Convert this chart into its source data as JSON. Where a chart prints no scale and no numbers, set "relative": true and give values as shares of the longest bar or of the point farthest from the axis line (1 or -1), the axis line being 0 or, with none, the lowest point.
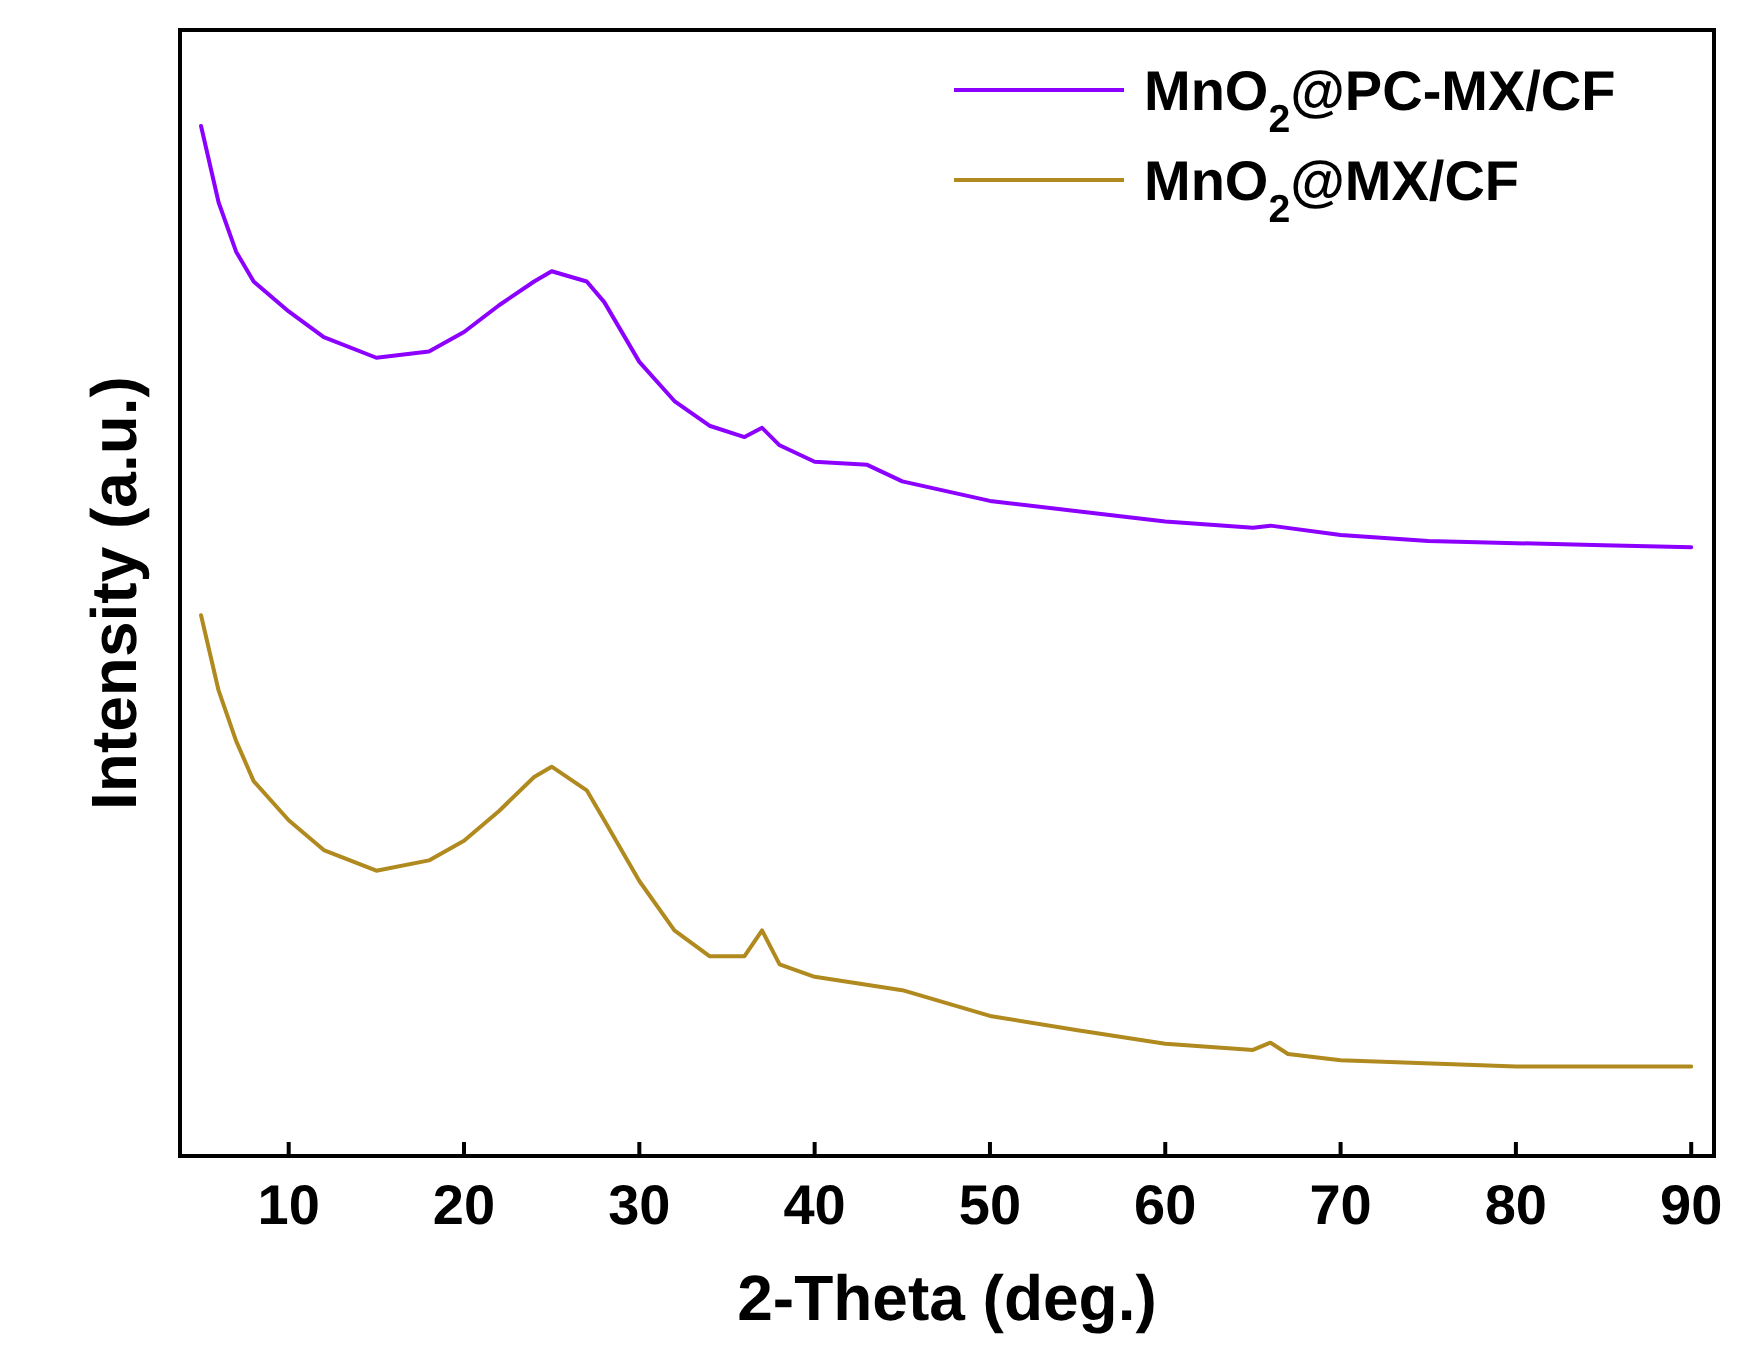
{
  "chart_data": {
    "type": "line",
    "relative": true,
    "xlabel": "2-Theta (deg.)",
    "ylabel": "Intensity (a.u.)",
    "xlim": [
      3.8,
      91.3
    ],
    "xticks": [
      10,
      20,
      30,
      40,
      50,
      60,
      70,
      80,
      90
    ],
    "legend": "top right",
    "marker": "none",
    "line_style": "solid",
    "grid": false,
    "series": [
      {
        "name": "MnO$_{2}$@PC-MX/CF",
        "color": "#8b00ff",
        "x": [
          5,
          6,
          7,
          8,
          10,
          12,
          15,
          18,
          20,
          22,
          24,
          25,
          27,
          28,
          30,
          32,
          34,
          36,
          37,
          38,
          40,
          43,
          45,
          50,
          55,
          60,
          65,
          66,
          70,
          75,
          80,
          85,
          90
        ],
        "values": [
          1.0,
          0.926,
          0.878,
          0.849,
          0.82,
          0.795,
          0.775,
          0.781,
          0.8,
          0.826,
          0.849,
          0.859,
          0.849,
          0.829,
          0.771,
          0.733,
          0.709,
          0.698,
          0.707,
          0.69,
          0.674,
          0.671,
          0.655,
          0.636,
          0.626,
          0.616,
          0.61,
          0.612,
          0.603,
          0.597,
          0.595,
          0.593,
          0.591
        ]
      },
      {
        "name": "MnO$_{2}$@MX/CF",
        "color": "#b08a1e",
        "x": [
          5,
          6,
          7,
          8,
          10,
          12,
          15,
          18,
          20,
          22,
          24,
          25,
          27,
          28,
          30,
          32,
          34,
          36,
          37,
          38,
          40,
          45,
          50,
          55,
          60,
          65,
          66,
          67,
          70,
          80,
          90
        ],
        "values": [
          0.525,
          0.452,
          0.403,
          0.364,
          0.326,
          0.297,
          0.277,
          0.287,
          0.306,
          0.335,
          0.368,
          0.378,
          0.355,
          0.326,
          0.267,
          0.219,
          0.194,
          0.194,
          0.219,
          0.186,
          0.174,
          0.161,
          0.136,
          0.122,
          0.109,
          0.103,
          0.11,
          0.099,
          0.093,
          0.087,
          0.087
        ]
      }
    ]
  }
}
